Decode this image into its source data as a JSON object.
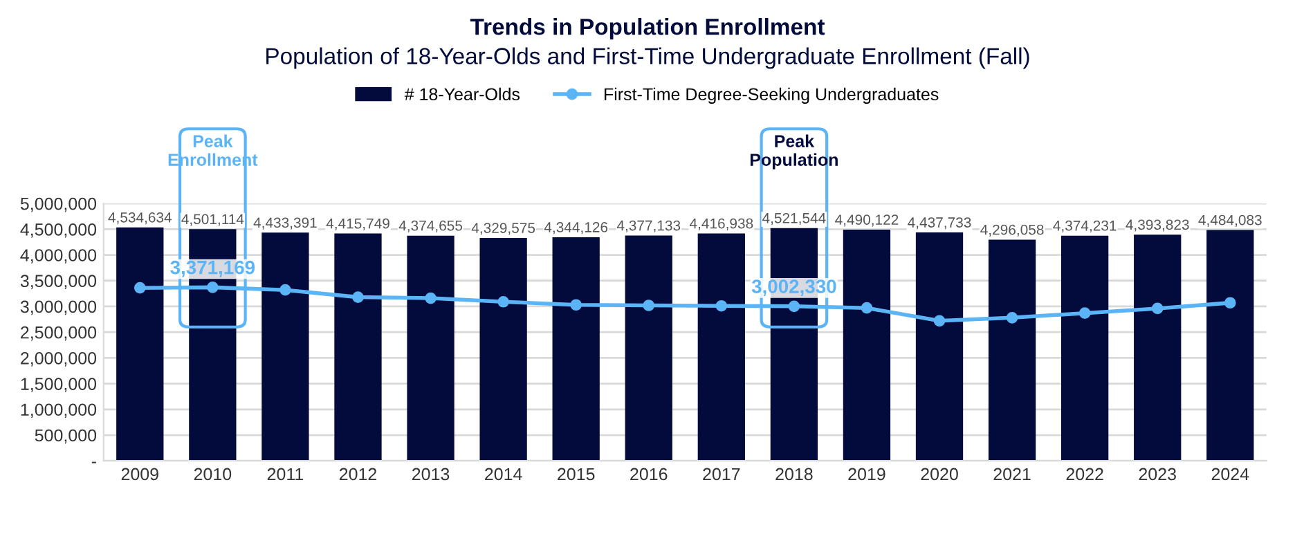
{
  "chart_data": {
    "type": "bar",
    "title": "Trends in Population Enrollment",
    "subtitle": "Population of 18-Year-Olds and First-Time Undergraduate Enrollment (Fall)",
    "categories": [
      "2009",
      "2010",
      "2011",
      "2012",
      "2013",
      "2014",
      "2015",
      "2016",
      "2017",
      "2018",
      "2019",
      "2020",
      "2021",
      "2022",
      "2023",
      "2024"
    ],
    "series": [
      {
        "name": "# 18-Year-Olds",
        "color": "#020b3b",
        "values": [
          4534634,
          4501114,
          4433391,
          4415749,
          4374655,
          4329575,
          4344126,
          4377133,
          4416938,
          4521544,
          4490122,
          4437733,
          4296058,
          4374231,
          4393823,
          4484083
        ],
        "value_labels": [
          "4,534,634",
          "4,501,114",
          "4,433,391",
          "4,415,749",
          "4,374,655",
          "4,329,575",
          "4,344,126",
          "4,377,133",
          "4,416,938",
          "4,521,544",
          "4,490,122",
          "4,437,733",
          "4,296,058",
          "4,374,231",
          "4,393,823",
          "4,484,083"
        ]
      },
      {
        "name": "First-Time Degree-Seeking Undergraduates",
        "type": "line",
        "color": "#5ab4f5",
        "marker": "circle",
        "values": [
          3360000,
          3371169,
          3320000,
          3180000,
          3160000,
          3090000,
          3030000,
          3020000,
          3010000,
          3002330,
          2970000,
          2720000,
          2780000,
          2870000,
          2960000,
          3070000
        ],
        "value_labels": [
          null,
          "3,371,169",
          null,
          null,
          null,
          null,
          null,
          null,
          null,
          "3,002,330",
          null,
          null,
          null,
          null,
          null,
          null
        ]
      }
    ],
    "ylim": [
      0,
      5000000
    ],
    "yticks": [
      {
        "value": 0,
        "label": "-"
      },
      {
        "value": 500000,
        "label": "500,000"
      },
      {
        "value": 1000000,
        "label": "1,000,000"
      },
      {
        "value": 1500000,
        "label": "1,500,000"
      },
      {
        "value": 2000000,
        "label": "2,000,000"
      },
      {
        "value": 2500000,
        "label": "2,500,000"
      },
      {
        "value": 3000000,
        "label": "3,000,000"
      },
      {
        "value": 3500000,
        "label": "3,500,000"
      },
      {
        "value": 4000000,
        "label": "4,000,000"
      },
      {
        "value": 4500000,
        "label": "4,500,000"
      },
      {
        "value": 5000000,
        "label": "5,000,000"
      }
    ],
    "grid": "y",
    "legend": "top",
    "annotations": [
      "Peak\nEnrollment",
      "Peak\nPopulation"
    ]
  }
}
